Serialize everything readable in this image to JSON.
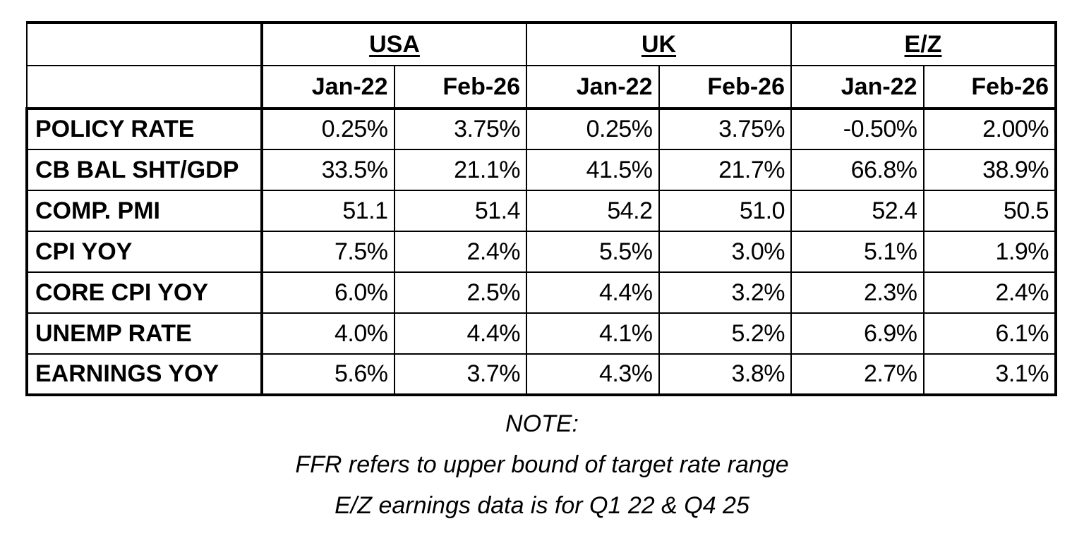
{
  "regions": [
    {
      "name": "USA"
    },
    {
      "name": "UK"
    },
    {
      "name": "E/Z"
    }
  ],
  "dates": [
    "Jan-22",
    "Feb-26",
    "Jan-22",
    "Feb-26",
    "Jan-22",
    "Feb-26"
  ],
  "rows": [
    {
      "label": "POLICY RATE",
      "values": [
        "0.25%",
        "3.75%",
        "0.25%",
        "3.75%",
        "-0.50%",
        "2.00%"
      ]
    },
    {
      "label": "CB BAL SHT/GDP",
      "values": [
        "33.5%",
        "21.1%",
        "41.5%",
        "21.7%",
        "66.8%",
        "38.9%"
      ]
    },
    {
      "label": "COMP. PMI",
      "values": [
        "51.1",
        "51.4",
        "54.2",
        "51.0",
        "52.4",
        "50.5"
      ]
    },
    {
      "label": "CPI YOY",
      "values": [
        "7.5%",
        "2.4%",
        "5.5%",
        "3.0%",
        "5.1%",
        "1.9%"
      ]
    },
    {
      "label": "CORE CPI YOY",
      "values": [
        "6.0%",
        "2.5%",
        "4.4%",
        "3.2%",
        "2.3%",
        "2.4%"
      ]
    },
    {
      "label": "UNEMP RATE",
      "values": [
        "4.0%",
        "4.4%",
        "4.1%",
        "5.2%",
        "6.9%",
        "6.1%"
      ]
    },
    {
      "label": "EARNINGS YOY",
      "values": [
        "5.6%",
        "3.7%",
        "4.3%",
        "3.8%",
        "2.7%",
        "3.1%"
      ]
    }
  ],
  "notes": {
    "heading": "NOTE:",
    "line1": "FFR refers to upper bound of target rate range",
    "line2": "E/Z earnings data is for Q1 22 & Q4 25"
  }
}
